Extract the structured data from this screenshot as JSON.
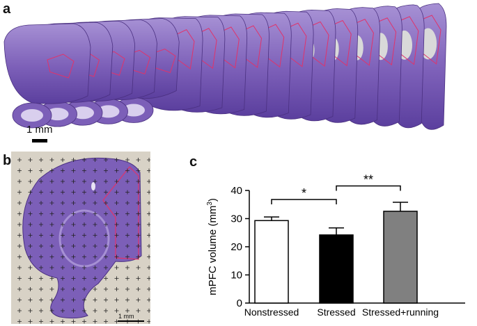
{
  "panels": {
    "a": {
      "letter": "a",
      "scalebar_label": "1 mm",
      "section_count": 17
    },
    "b": {
      "letter": "b",
      "scalebar_label": "1 mm"
    },
    "c": {
      "letter": "c"
    }
  },
  "colors": {
    "tissue_dark": "#5b3f9e",
    "tissue_mid": "#7c5fb8",
    "tissue_light": "#a690d4",
    "roi_outline": "#e0336b",
    "grid_bg": "#d8d2c6",
    "bar_nonstressed": "#ffffff",
    "bar_stressed": "#000000",
    "bar_running": "#808080"
  },
  "chart_data": {
    "type": "bar",
    "categories": [
      "Nonstressed",
      "Stressed",
      "Stressed+running"
    ],
    "values": [
      29.3,
      24.2,
      32.6
    ],
    "errors": [
      1.3,
      2.5,
      3.2
    ],
    "ylabel": "mPFC volume (mm3)",
    "ylabel_main": "mPFC volume (mm",
    "ylabel_sup": "3",
    "ylabel_close": ")",
    "ylim": [
      0,
      40
    ],
    "yticks": [
      "0",
      "10",
      "20",
      "30",
      "40"
    ],
    "grid": false,
    "significance": [
      {
        "from": 0,
        "to": 1,
        "label": "*"
      },
      {
        "from": 1,
        "to": 2,
        "label": "**"
      }
    ]
  }
}
